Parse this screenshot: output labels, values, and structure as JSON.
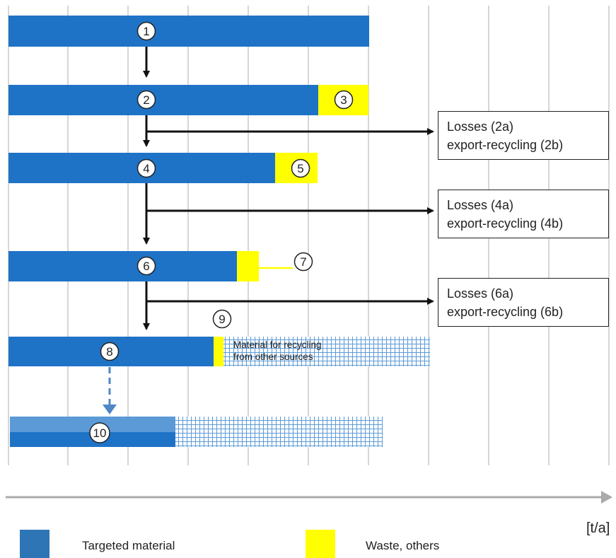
{
  "colors": {
    "targeted": "#1f73c6",
    "targeted_light": "#5b9ad6",
    "waste": "#ffff00",
    "grid": "#c8c8c8",
    "arrow": "#111111",
    "dashed_arrow": "#4f86c6",
    "hatch": "#5b9ad6"
  },
  "steps": [
    "1",
    "2",
    "3",
    "4",
    "5",
    "6",
    "7",
    "8",
    "9",
    "10"
  ],
  "loss_boxes": [
    {
      "line1": "Losses (2a)",
      "line2": "export-recycling (2b)"
    },
    {
      "line1": "Losses (4a)",
      "line2": "export-recycling (4b)"
    },
    {
      "line1": "Losses (6a)",
      "line2": "export-recycling  (6b)"
    }
  ],
  "recycling_note": {
    "line1": "Material for recycling",
    "line2": "from other sources"
  },
  "axis_unit": "[t/a]",
  "legend": {
    "targeted": "Targeted material",
    "waste": "Waste, others"
  }
}
